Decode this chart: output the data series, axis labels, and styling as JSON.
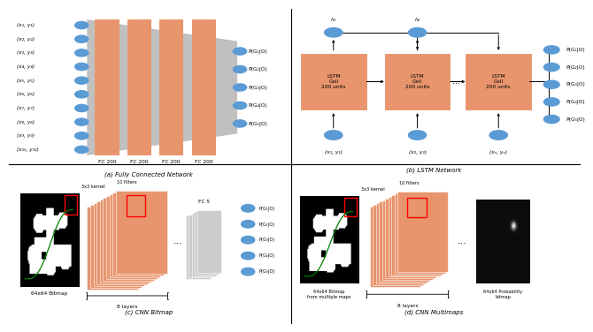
{
  "bg_color": "#ffffff",
  "orange_color": "#E8956D",
  "blue_color": "#5B9BD5",
  "gray_color": "#AAAAAA",
  "fc_input_labels": [
    "(x₁, y₁)",
    "(x₂, y₂)",
    "(x₃, y₃)",
    "(x₄, y₄)",
    "(x₅, y₅)",
    "(x₆, y₆)",
    "(x₇, y₇)",
    "(x₈, y₈)",
    "(x₉, y₉)",
    "(x₁₀, y₁₀)"
  ],
  "fc_output_labels": [
    "P(G₁|O)",
    "P(G₂|O)",
    "P(G₃|O)",
    "P(G₄|O)",
    "P(G₅|O)"
  ],
  "fc_layer_labels": [
    "FC 200",
    "FC 200",
    "FC 200",
    "FC 200"
  ],
  "fc_caption": "(a) Fully Connected Network",
  "lstm_cell_label": "LSTM\nCell\n200 units",
  "lstm_input_labels": [
    "(x₁, y₁)",
    "(x₂, y₂)",
    "(xₙ, yₙ)"
  ],
  "lstm_hidden_labels": [
    "h₁",
    "h₂"
  ],
  "lstm_output_labels": [
    "P(G₁|O)",
    "P(G₂|O)",
    "P(G₃|O)",
    "P(G₄|O)",
    "P(G₅|O)"
  ],
  "lstm_caption": "(b) LSTM Network",
  "cnn_bitmap_label": "64x64 Bitmap",
  "cnn_layers_label": "8 layers",
  "cnn_filters_label": "10 filters",
  "cnn_kernel_label": "3x3 kernel",
  "cnn_fc_label": "FC 5",
  "cnn_output_labels": [
    "P(G₁|O)",
    "P(G₂|O)",
    "P(G₃|O)",
    "P(G₄|O)",
    "P(G₅|O)"
  ],
  "cnn_caption": "(c) CNN Bitmap",
  "cnnm_bitmap_label": "64x64 Bitmap\nfrom multiple maps",
  "cnnm_layers_label": "8 layers",
  "cnnm_filters_label": "10 filters",
  "cnnm_kernel_label": "3x3 kernel",
  "cnnm_prob_label": "64x64 Probability\nbitmap",
  "cnnm_caption": "(d) CNN Multimaps"
}
